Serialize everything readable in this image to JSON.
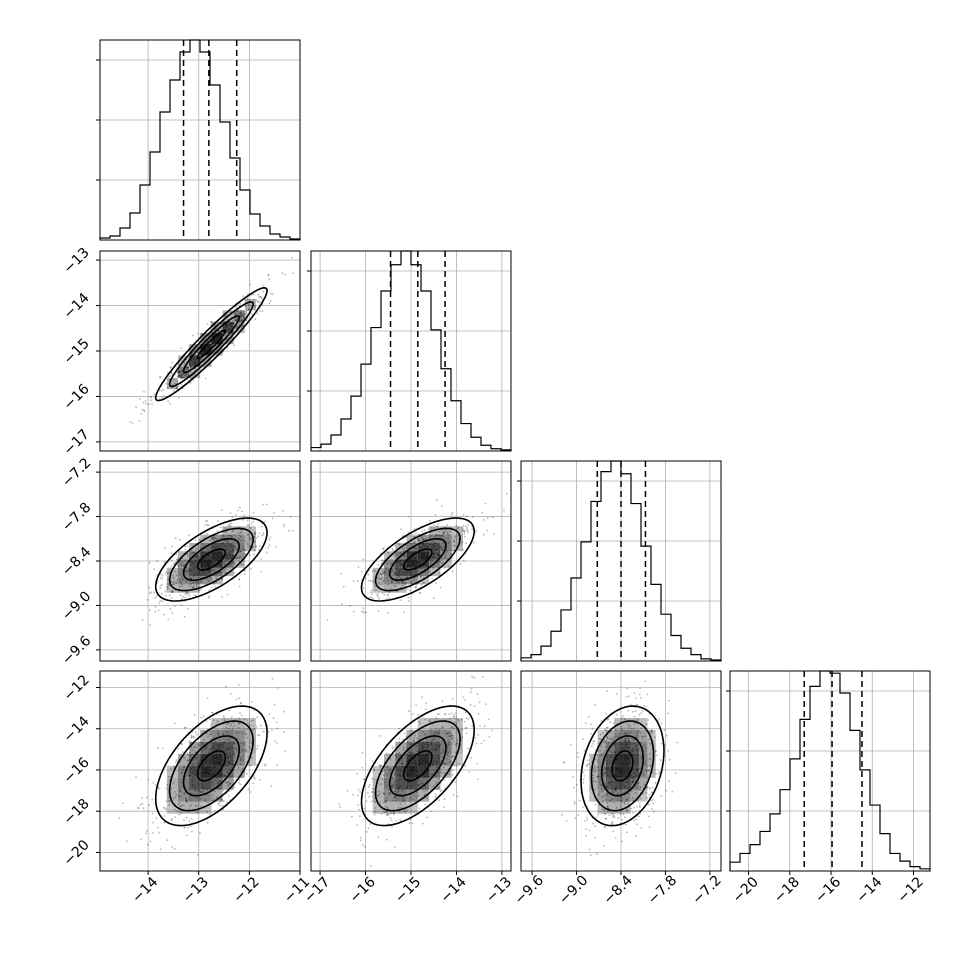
{
  "chart_data": {
    "type": "scatter",
    "params": [
      {
        "mean": -12.75,
        "sd": 0.55,
        "lim": [
          -14.95,
          -11.0
        ],
        "ticks": [
          -14,
          -13,
          -12,
          -11
        ],
        "tick_labels": [
          "−14",
          "−13",
          "−12",
          "−11"
        ],
        "quantiles": [
          -13.3,
          -12.8,
          -12.25
        ]
      },
      {
        "mean": -14.85,
        "sd": 0.62,
        "lim": [
          -17.2,
          -12.8
        ],
        "ticks": [
          -17,
          -16,
          -15,
          -14,
          -13
        ],
        "tick_labels": [
          "−17",
          "−16",
          "−15",
          "−14",
          "−13"
        ],
        "quantiles": [
          -15.45,
          -14.85,
          -14.25
        ]
      },
      {
        "mean": -8.38,
        "sd": 0.28,
        "lim": [
          -9.75,
          -7.05
        ],
        "ticks": [
          -9.6,
          -9.0,
          -8.4,
          -7.8,
          -7.2
        ],
        "tick_labels": [
          "−9.6",
          "−9.0",
          "−8.4",
          "−7.8",
          "−7.2"
        ],
        "quantiles": [
          -8.72,
          -8.4,
          -8.07
        ]
      },
      {
        "mean": -15.8,
        "sd": 1.45,
        "lim": [
          -20.9,
          -11.2
        ],
        "ticks": [
          -20,
          -18,
          -16,
          -14,
          -12
        ],
        "tick_labels": [
          "−20",
          "−18",
          "−16",
          "−14",
          "−12"
        ],
        "quantiles": [
          -17.3,
          -15.95,
          -14.5
        ]
      }
    ],
    "hist_counts": [
      [
        2,
        4,
        12,
        27,
        55,
        88,
        128,
        160,
        188,
        200,
        188,
        155,
        118,
        82,
        50,
        26,
        14,
        6,
        3,
        1
      ],
      [
        3,
        6,
        14,
        28,
        48,
        76,
        108,
        140,
        163,
        175,
        163,
        140,
        106,
        72,
        44,
        24,
        12,
        5,
        2,
        1
      ],
      [
        3,
        6,
        14,
        28,
        48,
        78,
        112,
        150,
        178,
        188,
        176,
        148,
        108,
        72,
        44,
        24,
        12,
        6,
        2,
        1
      ],
      [
        8,
        16,
        24,
        36,
        52,
        74,
        102,
        138,
        168,
        182,
        180,
        162,
        128,
        92,
        60,
        34,
        16,
        9,
        4,
        2
      ]
    ],
    "correlations": {
      "1-0": 0.95,
      "2-0": 0.65,
      "2-1": 0.68,
      "3-0": 0.55,
      "3-1": 0.6,
      "3-2": 0.25
    },
    "contour_levels_sigma": [
      0.5,
      1.0,
      1.5,
      2.0
    ],
    "grid": true
  },
  "colors": {
    "line": "#000000",
    "grid": "#b0b0b0",
    "points": "#000000"
  }
}
